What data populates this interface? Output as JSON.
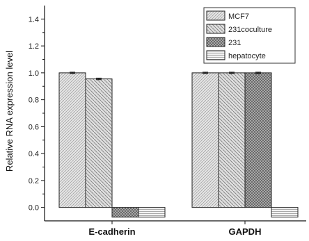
{
  "chart_data": {
    "type": "bar",
    "categories": [
      "E-cadherin",
      "GAPDH"
    ],
    "series": [
      {
        "name": "MCF7",
        "values": [
          1.0,
          1.0
        ],
        "errors": [
          0.005,
          0.005
        ],
        "pattern": "hatch-fine"
      },
      {
        "name": "231coculture",
        "values": [
          0.955,
          1.0
        ],
        "errors": [
          0.006,
          0.005
        ],
        "pattern": "hatch-diag"
      },
      {
        "name": "231",
        "values": [
          0.0,
          1.0
        ],
        "errors": [
          0.003,
          0.005
        ],
        "pattern": "crosshatch"
      },
      {
        "name": "hepatocyte",
        "values": [
          0.0,
          0.0
        ],
        "errors": [
          0.003,
          0.003
        ],
        "pattern": "horizontal"
      }
    ],
    "ylabel": "Relative RNA expression level",
    "xlabel": "",
    "ylim": [
      -0.1,
      1.5
    ],
    "yticks": [
      0.0,
      0.2,
      0.4,
      0.6,
      0.8,
      1.0,
      1.2,
      1.4
    ],
    "ytick_labels": [
      "0.0",
      "0.2",
      "0.4",
      "0.6",
      "0.8",
      "1.0",
      "1.2",
      "1.4"
    ],
    "legend_position": "top-right",
    "grid": false
  }
}
